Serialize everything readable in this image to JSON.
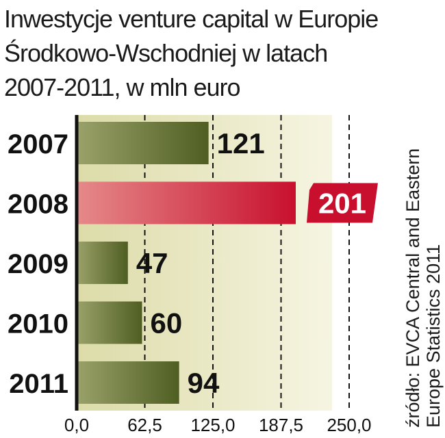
{
  "title_lines": [
    "Inwestycje venture capital w Europie",
    "Środkowo-Wschodniej w latach",
    "2007-2011, w mln euro"
  ],
  "source_lines": [
    "źródło: EVCA Central and Eastern",
    "Europe Statistics 2011"
  ],
  "colors": {
    "bar": "#5a6a2a",
    "bar_highlight": "#c8102e",
    "background_band": "#e8e6c4",
    "axis": "#111111"
  },
  "chart_data": {
    "type": "bar",
    "orientation": "horizontal",
    "title": "Inwestycje venture capital w Europie Środkowo-Wschodniej w latach 2007-2011, w mln euro",
    "categories": [
      "2007",
      "2008",
      "2009",
      "2010",
      "2011"
    ],
    "values": [
      121,
      201,
      47,
      60,
      94
    ],
    "value_labels": [
      "121",
      "201",
      "47",
      "60",
      "94"
    ],
    "highlighted_category": "2008",
    "xlim": [
      0,
      250
    ],
    "xticks": [
      0,
      62.5,
      125,
      187.5,
      250
    ],
    "xtick_labels": [
      "0,0",
      "62,5",
      "125,0",
      "187,5",
      "250,0"
    ],
    "grid": "dashed vertical",
    "xlabel": "",
    "ylabel": ""
  }
}
